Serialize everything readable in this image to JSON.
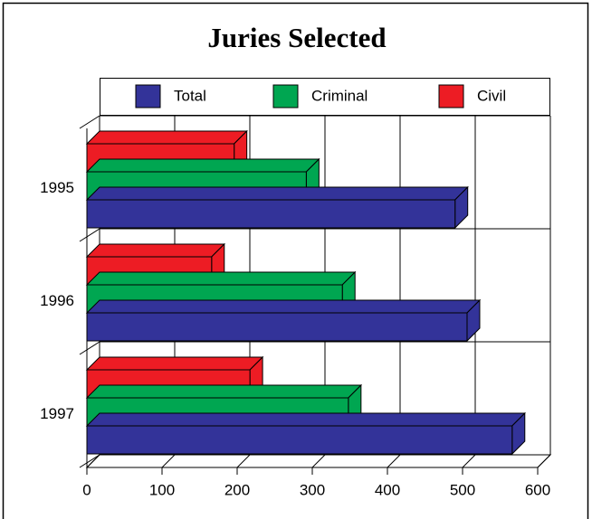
{
  "chart_data": {
    "type": "bar3d_horizontal",
    "title": "Juries Selected",
    "categories": [
      "1995",
      "1996",
      "1997"
    ],
    "series": [
      {
        "name": "Total",
        "color": "#333399",
        "values": [
          490,
          506,
          566
        ]
      },
      {
        "name": "Criminal",
        "color": "#00a651",
        "values": [
          292,
          340,
          348
        ]
      },
      {
        "name": "Civil",
        "color": "#ed1c24",
        "values": [
          196,
          166,
          217
        ]
      }
    ],
    "xlim": [
      0,
      600
    ],
    "xticks": [
      0,
      100,
      200,
      300,
      400,
      500,
      600
    ],
    "grid": true,
    "legend": "top"
  }
}
